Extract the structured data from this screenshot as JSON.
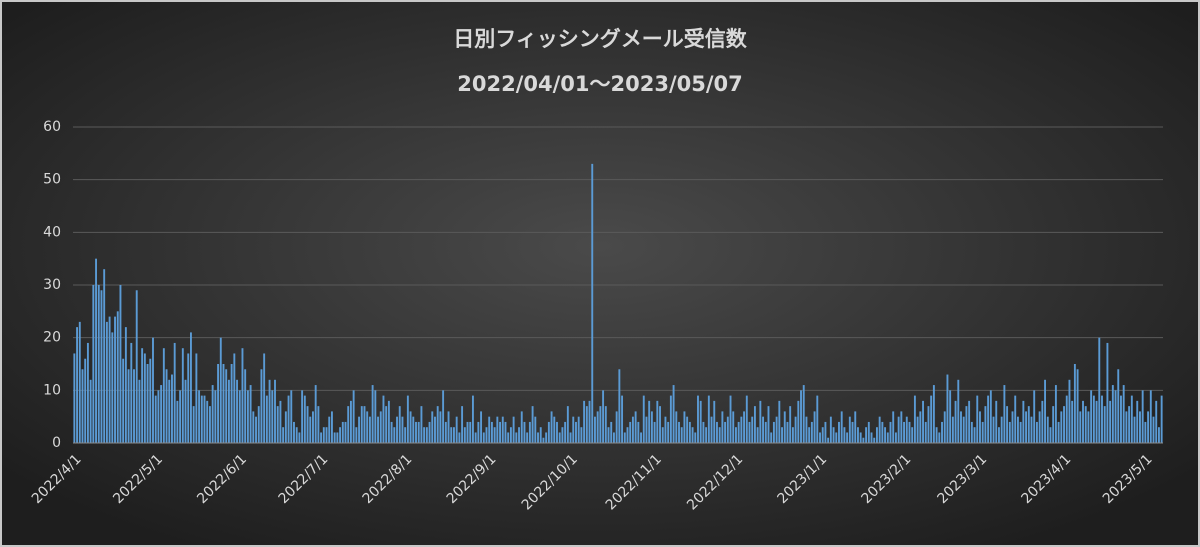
{
  "chart_data": {
    "type": "bar",
    "title": "日別フィッシングメール受信数",
    "subtitle": "2022/04/01～2023/05/07",
    "color": "#5b9bd5",
    "grid": true,
    "ylim": [
      0,
      60
    ],
    "yticks": [
      0,
      10,
      20,
      30,
      40,
      50,
      60
    ],
    "xticks": [
      "2022/4/1",
      "2022/5/1",
      "2022/6/1",
      "2022/7/1",
      "2022/8/1",
      "2022/9/1",
      "2022/10/1",
      "2022/11/1",
      "2022/12/1",
      "2023/1/1",
      "2023/2/1",
      "2023/3/1",
      "2023/4/1",
      "2023/5/1"
    ],
    "categories": [
      "2022/4/1",
      "2022/4/2",
      "2022/4/3",
      "2022/4/4",
      "2022/4/5",
      "2022/4/6",
      "2022/4/7",
      "2022/4/8",
      "2022/4/9",
      "2022/4/10",
      "2022/4/11",
      "2022/4/12",
      "2022/4/13",
      "2022/4/14",
      "2022/4/15",
      "2022/4/16",
      "2022/4/17",
      "2022/4/18",
      "2022/4/19",
      "2022/4/20",
      "2022/4/21",
      "2022/4/22",
      "2022/4/23",
      "2022/4/24",
      "2022/4/25",
      "2022/4/26",
      "2022/4/27",
      "2022/4/28",
      "2022/4/29",
      "2022/4/30",
      "2022/5/1",
      "2022/5/2",
      "2022/5/3",
      "2022/5/4",
      "2022/5/5",
      "2022/5/6",
      "2022/5/7",
      "2022/5/8",
      "2022/5/9",
      "2022/5/10",
      "2022/5/11",
      "2022/5/12",
      "2022/5/13",
      "2022/5/14",
      "2022/5/15",
      "2022/5/16",
      "2022/5/17",
      "2022/5/18",
      "2022/5/19",
      "2022/5/20",
      "2022/5/21",
      "2022/5/22",
      "2022/5/23",
      "2022/5/24",
      "2022/5/25",
      "2022/5/26",
      "2022/5/27",
      "2022/5/28",
      "2022/5/29",
      "2022/5/30",
      "2022/5/31",
      "2022/6/1",
      "2022/6/2",
      "2022/6/3",
      "2022/6/4",
      "2022/6/5",
      "2022/6/6",
      "2022/6/7",
      "2022/6/8",
      "2022/6/9",
      "2022/6/10",
      "2022/6/11",
      "2022/6/12",
      "2022/6/13",
      "2022/6/14",
      "2022/6/15",
      "2022/6/16",
      "2022/6/17",
      "2022/6/18",
      "2022/6/19",
      "2022/6/20",
      "2022/6/21",
      "2022/6/22",
      "2022/6/23",
      "2022/6/24",
      "2022/6/25",
      "2022/6/26",
      "2022/6/27",
      "2022/6/28",
      "2022/6/29",
      "2022/6/30",
      "2022/7/1",
      "2022/7/2",
      "2022/7/3",
      "2022/7/4",
      "2022/7/5",
      "2022/7/6",
      "2022/7/7",
      "2022/7/8",
      "2022/7/9",
      "2022/7/10",
      "2022/7/11",
      "2022/7/12",
      "2022/7/13",
      "2022/7/14",
      "2022/7/15",
      "2022/7/16",
      "2022/7/17",
      "2022/7/18",
      "2022/7/19",
      "2022/7/20",
      "2022/7/21",
      "2022/7/22",
      "2022/7/23",
      "2022/7/24",
      "2022/7/25",
      "2022/7/26",
      "2022/7/27",
      "2022/7/28",
      "2022/7/29",
      "2022/7/30",
      "2022/7/31",
      "2022/8/1",
      "2022/8/2",
      "2022/8/3",
      "2022/8/4",
      "2022/8/5",
      "2022/8/6",
      "2022/8/7",
      "2022/8/8",
      "2022/8/9",
      "2022/8/10",
      "2022/8/11",
      "2022/8/12",
      "2022/8/13",
      "2022/8/14",
      "2022/8/15",
      "2022/8/16",
      "2022/8/17",
      "2022/8/18",
      "2022/8/19",
      "2022/8/20",
      "2022/8/21",
      "2022/8/22",
      "2022/8/23",
      "2022/8/24",
      "2022/8/25",
      "2022/8/26",
      "2022/8/27",
      "2022/8/28",
      "2022/8/29",
      "2022/8/30",
      "2022/8/31",
      "2022/9/1",
      "2022/9/2",
      "2022/9/3",
      "2022/9/4",
      "2022/9/5",
      "2022/9/6",
      "2022/9/7",
      "2022/9/8",
      "2022/9/9",
      "2022/9/10",
      "2022/9/11",
      "2022/9/12",
      "2022/9/13",
      "2022/9/14",
      "2022/9/15",
      "2022/9/16",
      "2022/9/17",
      "2022/9/18",
      "2022/9/19",
      "2022/9/20",
      "2022/9/21",
      "2022/9/22",
      "2022/9/23",
      "2022/9/24",
      "2022/9/25",
      "2022/9/26",
      "2022/9/27",
      "2022/9/28",
      "2022/9/29",
      "2022/9/30",
      "2022/10/1",
      "2022/10/2",
      "2022/10/3",
      "2022/10/4",
      "2022/10/5",
      "2022/10/6",
      "2022/10/7",
      "2022/10/8",
      "2022/10/9",
      "2022/10/10",
      "2022/10/11",
      "2022/10/12",
      "2022/10/13",
      "2022/10/14",
      "2022/10/15",
      "2022/10/16",
      "2022/10/17",
      "2022/10/18",
      "2022/10/19",
      "2022/10/20",
      "2022/10/21",
      "2022/10/22",
      "2022/10/23",
      "2022/10/24",
      "2022/10/25",
      "2022/10/26",
      "2022/10/27",
      "2022/10/28",
      "2022/10/29",
      "2022/10/30",
      "2022/10/31",
      "2022/11/1",
      "2022/11/2",
      "2022/11/3",
      "2022/11/4",
      "2022/11/5",
      "2022/11/6",
      "2022/11/7",
      "2022/11/8",
      "2022/11/9",
      "2022/11/10",
      "2022/11/11",
      "2022/11/12",
      "2022/11/13",
      "2022/11/14",
      "2022/11/15",
      "2022/11/16",
      "2022/11/17",
      "2022/11/18",
      "2022/11/19",
      "2022/11/20",
      "2022/11/21",
      "2022/11/22",
      "2022/11/23",
      "2022/11/24",
      "2022/11/25",
      "2022/11/26",
      "2022/11/27",
      "2022/11/28",
      "2022/11/29",
      "2022/11/30",
      "2022/12/1",
      "2022/12/2",
      "2022/12/3",
      "2022/12/4",
      "2022/12/5",
      "2022/12/6",
      "2022/12/7",
      "2022/12/8",
      "2022/12/9",
      "2022/12/10",
      "2022/12/11",
      "2022/12/12",
      "2022/12/13",
      "2022/12/14",
      "2022/12/15",
      "2022/12/16",
      "2022/12/17",
      "2022/12/18",
      "2022/12/19",
      "2022/12/20",
      "2022/12/21",
      "2022/12/22",
      "2022/12/23",
      "2022/12/24",
      "2022/12/25",
      "2022/12/26",
      "2022/12/27",
      "2022/12/28",
      "2022/12/29",
      "2022/12/30",
      "2022/12/31",
      "2023/1/1",
      "2023/1/2",
      "2023/1/3",
      "2023/1/4",
      "2023/1/5",
      "2023/1/6",
      "2023/1/7",
      "2023/1/8",
      "2023/1/9",
      "2023/1/10",
      "2023/1/11",
      "2023/1/12",
      "2023/1/13",
      "2023/1/14",
      "2023/1/15",
      "2023/1/16",
      "2023/1/17",
      "2023/1/18",
      "2023/1/19",
      "2023/1/20",
      "2023/1/21",
      "2023/1/22",
      "2023/1/23",
      "2023/1/24",
      "2023/1/25",
      "2023/1/26",
      "2023/1/27",
      "2023/1/28",
      "2023/1/29",
      "2023/1/30",
      "2023/1/31",
      "2023/2/1",
      "2023/2/2",
      "2023/2/3",
      "2023/2/4",
      "2023/2/5",
      "2023/2/6",
      "2023/2/7",
      "2023/2/8",
      "2023/2/9",
      "2023/2/10",
      "2023/2/11",
      "2023/2/12",
      "2023/2/13",
      "2023/2/14",
      "2023/2/15",
      "2023/2/16",
      "2023/2/17",
      "2023/2/18",
      "2023/2/19",
      "2023/2/20",
      "2023/2/21",
      "2023/2/22",
      "2023/2/23",
      "2023/2/24",
      "2023/2/25",
      "2023/2/26",
      "2023/2/27",
      "2023/2/28",
      "2023/3/1",
      "2023/3/2",
      "2023/3/3",
      "2023/3/4",
      "2023/3/5",
      "2023/3/6",
      "2023/3/7",
      "2023/3/8",
      "2023/3/9",
      "2023/3/10",
      "2023/3/11",
      "2023/3/12",
      "2023/3/13",
      "2023/3/14",
      "2023/3/15",
      "2023/3/16",
      "2023/3/17",
      "2023/3/18",
      "2023/3/19",
      "2023/3/20",
      "2023/3/21",
      "2023/3/22",
      "2023/3/23",
      "2023/3/24",
      "2023/3/25",
      "2023/3/26",
      "2023/3/27",
      "2023/3/28",
      "2023/3/29",
      "2023/3/30",
      "2023/3/31",
      "2023/4/1",
      "2023/4/2",
      "2023/4/3",
      "2023/4/4",
      "2023/4/5",
      "2023/4/6",
      "2023/4/7",
      "2023/4/8",
      "2023/4/9",
      "2023/4/10",
      "2023/4/11",
      "2023/4/12",
      "2023/4/13",
      "2023/4/14",
      "2023/4/15",
      "2023/4/16",
      "2023/4/17",
      "2023/4/18",
      "2023/4/19",
      "2023/4/20",
      "2023/4/21",
      "2023/4/22",
      "2023/4/23",
      "2023/4/24",
      "2023/4/25",
      "2023/4/26",
      "2023/4/27",
      "2023/4/28",
      "2023/4/29",
      "2023/4/30",
      "2023/5/1",
      "2023/5/2",
      "2023/5/3",
      "2023/5/4",
      "2023/5/5",
      "2023/5/6",
      "2023/5/7"
    ],
    "values": [
      17,
      22,
      23,
      14,
      16,
      19,
      12,
      30,
      35,
      30,
      29,
      33,
      23,
      24,
      21,
      24,
      25,
      30,
      16,
      22,
      14,
      19,
      14,
      29,
      12,
      18,
      17,
      15,
      16,
      20,
      9,
      10,
      11,
      18,
      14,
      12,
      13,
      19,
      8,
      10,
      18,
      12,
      17,
      21,
      7,
      17,
      10,
      9,
      9,
      8,
      7,
      11,
      10,
      15,
      20,
      15,
      14,
      12,
      15,
      17,
      12,
      10,
      18,
      14,
      10,
      11,
      6,
      5,
      7,
      14,
      17,
      9,
      12,
      10,
      12,
      7,
      8,
      3,
      6,
      9,
      10,
      4,
      3,
      2,
      10,
      9,
      7,
      5,
      6,
      11,
      7,
      2,
      3,
      3,
      5,
      6,
      2,
      2,
      3,
      4,
      4,
      7,
      8,
      10,
      3,
      5,
      7,
      7,
      6,
      5,
      11,
      10,
      5,
      6,
      9,
      7,
      8,
      4,
      3,
      5,
      7,
      5,
      3,
      9,
      6,
      5,
      4,
      4,
      7,
      3,
      3,
      4,
      6,
      5,
      7,
      6,
      10,
      4,
      6,
      3,
      3,
      5,
      2,
      7,
      3,
      4,
      4,
      9,
      2,
      4,
      6,
      2,
      3,
      5,
      4,
      3,
      5,
      4,
      5,
      4,
      2,
      3,
      5,
      2,
      3,
      6,
      4,
      2,
      4,
      7,
      5,
      2,
      3,
      1,
      2,
      4,
      6,
      5,
      4,
      2,
      3,
      4,
      7,
      2,
      5,
      4,
      5,
      3,
      8,
      7,
      8,
      53,
      5,
      6,
      7,
      10,
      7,
      3,
      4,
      2,
      6,
      14,
      9,
      2,
      3,
      4,
      5,
      6,
      4,
      2,
      9,
      5,
      8,
      6,
      4,
      8,
      7,
      3,
      5,
      4,
      9,
      11,
      6,
      4,
      3,
      6,
      5,
      4,
      3,
      2,
      9,
      8,
      4,
      3,
      9,
      5,
      8,
      4,
      3,
      6,
      4,
      5,
      9,
      6,
      3,
      4,
      5,
      6,
      9,
      4,
      5,
      7,
      3,
      8,
      5,
      4,
      7,
      2,
      4,
      5,
      8,
      3,
      6,
      4,
      7,
      3,
      5,
      8,
      10,
      11,
      5,
      3,
      4,
      6,
      9,
      2,
      3,
      4,
      1,
      5,
      3,
      2,
      4,
      6,
      3,
      2,
      5,
      4,
      6,
      3,
      2,
      1,
      3,
      4,
      2,
      1,
      3,
      5,
      4,
      3,
      2,
      4,
      6,
      2,
      5,
      6,
      4,
      5,
      4,
      3,
      9,
      5,
      6,
      8,
      4,
      7,
      9,
      11,
      3,
      2,
      4,
      6,
      13,
      10,
      5,
      8,
      12,
      6,
      5,
      7,
      8,
      4,
      3,
      9,
      6,
      4,
      7,
      9,
      10,
      5,
      8,
      3,
      5,
      11,
      7,
      4,
      6,
      9,
      5,
      4,
      8,
      6,
      7,
      5,
      10,
      4,
      6,
      8,
      12,
      5,
      3,
      7,
      11,
      4,
      6,
      7,
      9,
      12,
      8,
      15,
      14,
      6,
      8,
      7,
      6,
      10,
      9,
      8,
      20,
      9,
      7,
      19,
      8,
      11,
      10,
      14,
      9,
      11,
      6,
      7,
      9,
      5,
      8,
      6,
      10,
      4,
      6,
      10,
      5,
      8,
      3,
      9
    ]
  }
}
